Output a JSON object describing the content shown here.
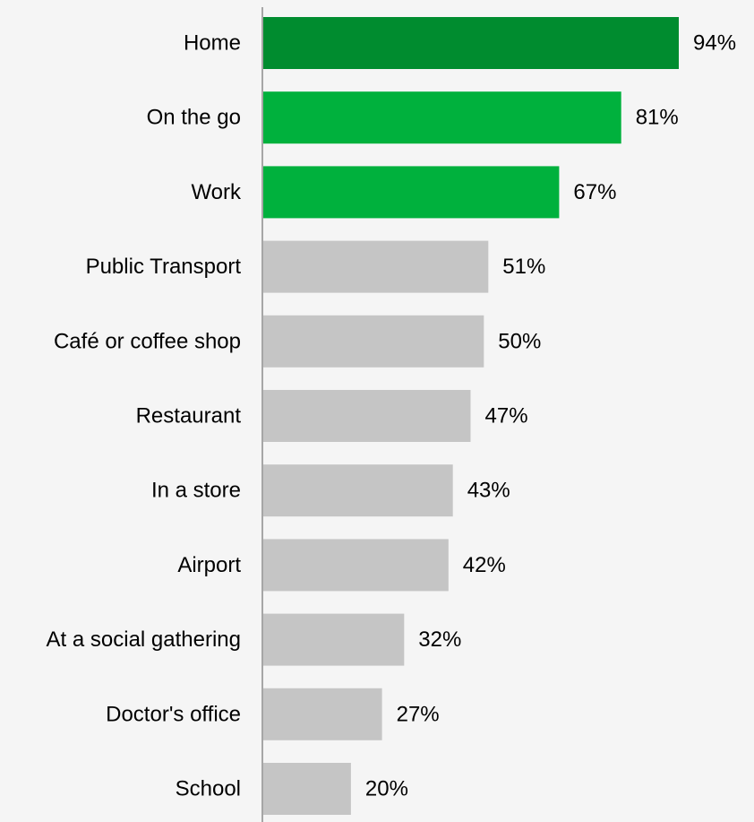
{
  "chart_data": {
    "type": "bar",
    "orientation": "horizontal",
    "categories": [
      "Home",
      "On the go",
      "Work",
      "Public Transport",
      "Café or coffee shop",
      "Restaurant",
      "In a store",
      "Airport",
      "At a social gathering",
      "Doctor's office",
      "School"
    ],
    "values": [
      94,
      81,
      67,
      51,
      50,
      47,
      43,
      42,
      32,
      27,
      20
    ],
    "value_labels": [
      "94%",
      "81%",
      "67%",
      "51%",
      "50%",
      "47%",
      "43%",
      "42%",
      "32%",
      "27%",
      "20%"
    ],
    "bar_colors": [
      "#008c2f",
      "#00b13d",
      "#00b13d",
      "#c5c5c5",
      "#c5c5c5",
      "#c5c5c5",
      "#c5c5c5",
      "#c5c5c5",
      "#c5c5c5",
      "#c5c5c5",
      "#c5c5c5"
    ],
    "axis_line_color": "#a6a6a6",
    "background_color": "#f5f5f5",
    "xlim": [
      0,
      100
    ],
    "grid": false,
    "legend": "none"
  }
}
